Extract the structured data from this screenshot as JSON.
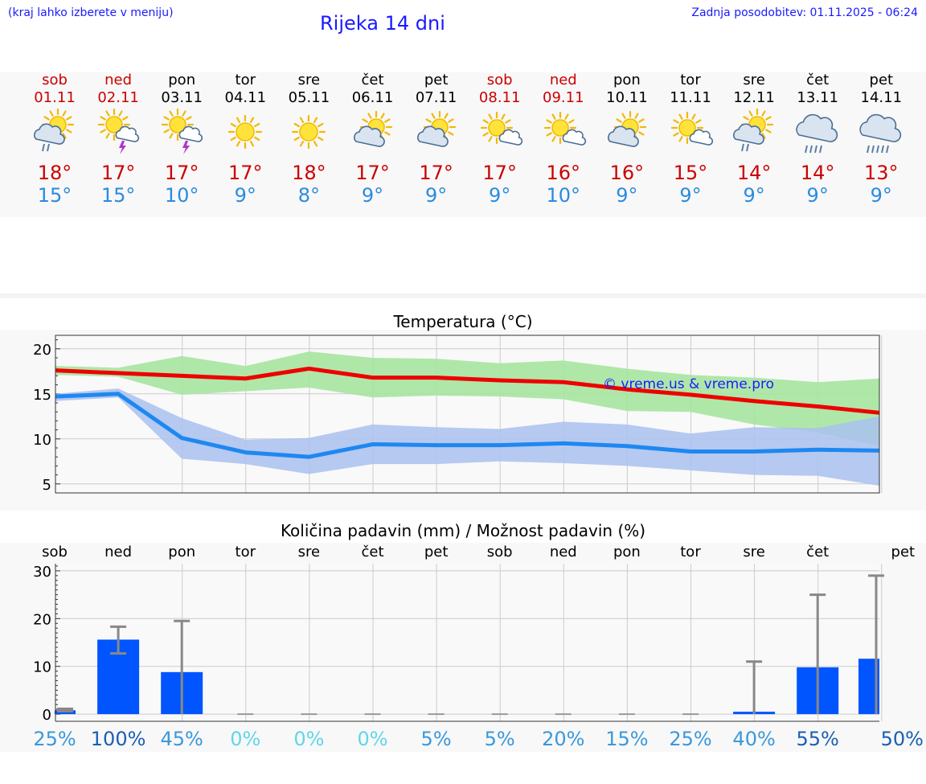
{
  "header": {
    "menu_hint": "(kraj lahko izberete v meniju)",
    "title": "Rijeka 14 dni",
    "updated": "Zadnja posodobitev: 01.11.2025 - 06:24"
  },
  "days": [
    {
      "name": "sob",
      "date": "01.11",
      "weekend": true,
      "icon": "sun-cloud-rain-icon",
      "max": "18°",
      "min": "15°"
    },
    {
      "name": "ned",
      "date": "02.11",
      "weekend": true,
      "icon": "sun-cloud-storm-icon",
      "max": "17°",
      "min": "15°"
    },
    {
      "name": "pon",
      "date": "03.11",
      "weekend": false,
      "icon": "sun-cloud-storm-icon",
      "max": "17°",
      "min": "10°"
    },
    {
      "name": "tor",
      "date": "04.11",
      "weekend": false,
      "icon": "sun-icon",
      "max": "17°",
      "min": "9°"
    },
    {
      "name": "sre",
      "date": "05.11",
      "weekend": false,
      "icon": "sun-icon",
      "max": "18°",
      "min": "8°"
    },
    {
      "name": "čet",
      "date": "06.11",
      "weekend": false,
      "icon": "sun-cloud-icon",
      "max": "17°",
      "min": "9°"
    },
    {
      "name": "pet",
      "date": "07.11",
      "weekend": false,
      "icon": "sun-cloud-icon",
      "max": "17°",
      "min": "9°"
    },
    {
      "name": "sob",
      "date": "08.11",
      "weekend": true,
      "icon": "sun-small-cloud-icon",
      "max": "17°",
      "min": "9°"
    },
    {
      "name": "ned",
      "date": "09.11",
      "weekend": true,
      "icon": "sun-small-cloud-icon",
      "max": "16°",
      "min": "10°"
    },
    {
      "name": "pon",
      "date": "10.11",
      "weekend": false,
      "icon": "sun-cloud-icon",
      "max": "16°",
      "min": "9°"
    },
    {
      "name": "tor",
      "date": "11.11",
      "weekend": false,
      "icon": "sun-small-cloud-icon",
      "max": "15°",
      "min": "9°"
    },
    {
      "name": "sre",
      "date": "12.11",
      "weekend": false,
      "icon": "sun-cloud-rain-icon",
      "max": "14°",
      "min": "9°"
    },
    {
      "name": "čet",
      "date": "13.11",
      "weekend": false,
      "icon": "cloud-rain-icon",
      "max": "14°",
      "min": "9°"
    },
    {
      "name": "pet",
      "date": "14.11",
      "weekend": false,
      "icon": "cloud-heavy-rain-icon",
      "max": "13°",
      "min": "9°"
    }
  ],
  "colors": {
    "max": "#cc0000",
    "min": "#2a8be0",
    "max_line": "#ee0000",
    "min_line": "#1e88f0",
    "max_band": "#a6e4a0",
    "min_band": "#a9c1f0",
    "bar": "#0055ff",
    "errbar": "#888888",
    "grid": "#cccccc",
    "watermark": "#1a1aff"
  },
  "chart_data": [
    {
      "type": "line",
      "title": "Temperatura (°C)",
      "x": [
        1,
        2,
        3,
        4,
        5,
        6,
        7,
        8,
        9,
        10,
        11,
        12,
        13,
        14
      ],
      "ylim": [
        4,
        21.5
      ],
      "yticks": [
        5,
        10,
        15,
        20
      ],
      "series": [
        {
          "name": "max",
          "values": [
            17.6,
            17.3,
            17.0,
            16.7,
            17.8,
            16.8,
            16.8,
            16.5,
            16.3,
            15.5,
            14.9,
            14.2,
            13.6,
            12.9
          ],
          "band_low": [
            17.1,
            16.9,
            14.9,
            15.3,
            15.7,
            14.6,
            14.8,
            14.7,
            14.4,
            13.1,
            13.0,
            11.6,
            10.7,
            9.2
          ],
          "band_high": [
            18.1,
            17.9,
            19.2,
            18.1,
            19.7,
            19.0,
            18.9,
            18.4,
            18.7,
            17.8,
            17.1,
            16.8,
            16.3,
            16.7
          ]
        },
        {
          "name": "min",
          "values": [
            14.7,
            15.0,
            10.1,
            8.5,
            8.0,
            9.4,
            9.3,
            9.3,
            9.5,
            9.2,
            8.6,
            8.6,
            8.8,
            8.7
          ],
          "band_low": [
            14.2,
            14.6,
            7.8,
            7.2,
            6.1,
            7.2,
            7.2,
            7.5,
            7.3,
            7.0,
            6.5,
            6.0,
            5.9,
            4.8
          ],
          "band_high": [
            15.0,
            15.6,
            12.3,
            9.9,
            10.1,
            11.6,
            11.3,
            11.1,
            11.9,
            11.6,
            10.6,
            11.3,
            11.2,
            12.5
          ]
        }
      ],
      "watermark": "© vreme.us & vreme.pro"
    },
    {
      "type": "bar",
      "title": "Količina padavin (mm) / Možnost padavin (%)",
      "categories": [
        "sob",
        "ned",
        "pon",
        "tor",
        "sre",
        "čet",
        "pet",
        "sob",
        "ned",
        "pon",
        "tor",
        "sre",
        "čet",
        "pet"
      ],
      "ylim": [
        -1.5,
        31.5
      ],
      "yticks": [
        0,
        10,
        20,
        30
      ],
      "values": [
        0.8,
        15.6,
        8.8,
        0,
        0,
        0,
        0,
        0,
        0,
        0,
        0,
        0.5,
        9.8,
        11.6
      ],
      "err_low": [
        0.6,
        12.7,
        0,
        0,
        0,
        0,
        0,
        0,
        0,
        0,
        0,
        0,
        0,
        0
      ],
      "err_high": [
        1.1,
        18.3,
        19.5,
        0,
        0,
        0,
        0,
        0,
        0,
        0,
        0,
        11.0,
        25.0,
        29.0
      ],
      "probability": [
        "25%",
        "100%",
        "45%",
        "0%",
        "0%",
        "0%",
        "5%",
        "5%",
        "20%",
        "15%",
        "25%",
        "40%",
        "55%",
        "50%"
      ],
      "probability_values": [
        25,
        100,
        45,
        0,
        0,
        0,
        5,
        5,
        20,
        15,
        25,
        40,
        55,
        50
      ]
    }
  ]
}
